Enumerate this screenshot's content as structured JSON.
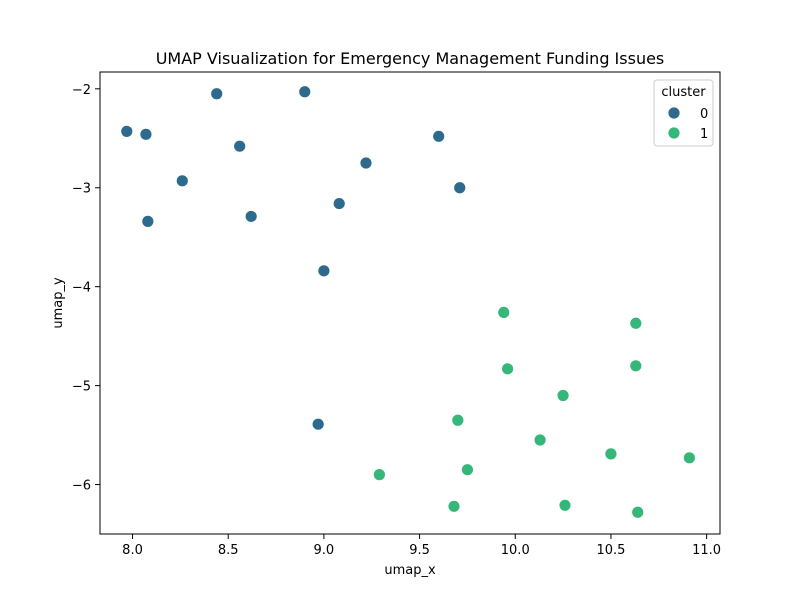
{
  "chart_data": {
    "type": "scatter",
    "title": "UMAP Visualization for Emergency Management Funding Issues",
    "xlabel": "umap_x",
    "ylabel": "umap_y",
    "xlim": [
      7.83,
      11.07
    ],
    "ylim": [
      -6.5,
      -1.83
    ],
    "xticks": [
      8.0,
      8.5,
      9.0,
      9.5,
      10.0,
      10.5,
      11.0
    ],
    "xtick_labels": [
      "8.0",
      "8.5",
      "9.0",
      "9.5",
      "10.0",
      "10.5",
      "11.0"
    ],
    "yticks": [
      -2,
      -3,
      -4,
      -5,
      -6
    ],
    "ytick_labels": [
      "−2",
      "−3",
      "−4",
      "−5",
      "−6"
    ],
    "grid": false,
    "legend": {
      "title": "cluster",
      "placement": "top-right",
      "entries": [
        "0",
        "1"
      ]
    },
    "series": [
      {
        "name": "0",
        "color": "#2e6a8e",
        "points": [
          [
            7.97,
            -2.43
          ],
          [
            8.07,
            -2.46
          ],
          [
            8.44,
            -2.05
          ],
          [
            8.9,
            -2.03
          ],
          [
            9.6,
            -2.48
          ],
          [
            8.56,
            -2.58
          ],
          [
            9.22,
            -2.75
          ],
          [
            8.26,
            -2.93
          ],
          [
            9.71,
            -3.0
          ],
          [
            9.08,
            -3.16
          ],
          [
            8.08,
            -3.34
          ],
          [
            8.62,
            -3.29
          ],
          [
            9.0,
            -3.84
          ],
          [
            8.97,
            -5.39
          ]
        ]
      },
      {
        "name": "1",
        "color": "#35b779",
        "points": [
          [
            9.94,
            -4.26
          ],
          [
            10.63,
            -4.37
          ],
          [
            10.63,
            -4.8
          ],
          [
            9.96,
            -4.83
          ],
          [
            10.25,
            -5.1
          ],
          [
            9.7,
            -5.35
          ],
          [
            10.13,
            -5.55
          ],
          [
            10.5,
            -5.69
          ],
          [
            10.91,
            -5.73
          ],
          [
            9.75,
            -5.85
          ],
          [
            9.29,
            -5.9
          ],
          [
            9.68,
            -6.22
          ],
          [
            10.26,
            -6.21
          ],
          [
            10.64,
            -6.28
          ]
        ]
      }
    ]
  }
}
